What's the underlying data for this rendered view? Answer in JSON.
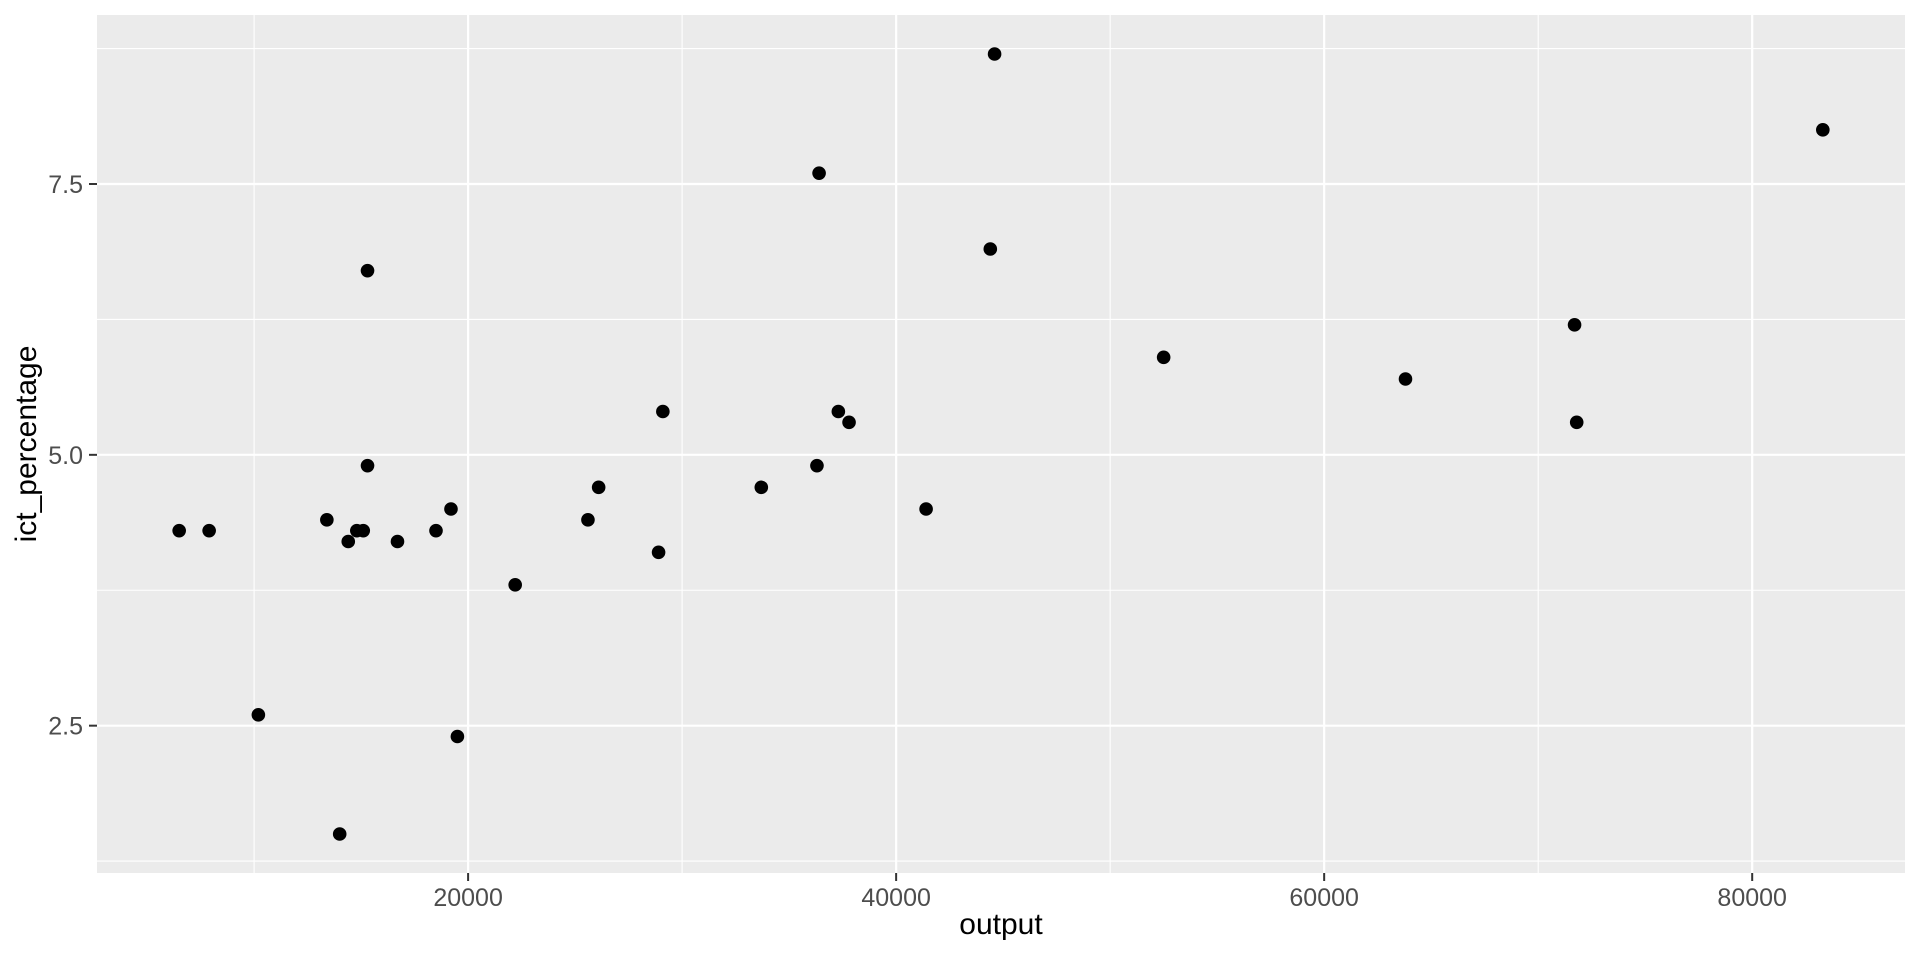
{
  "chart_data": {
    "type": "scatter",
    "title": "",
    "xlabel": "output",
    "ylabel": "ict_percentage",
    "x_ticks": [
      20000,
      40000,
      60000,
      80000
    ],
    "x_tick_labels": [
      "20000",
      "40000",
      "60000",
      "80000"
    ],
    "x_minor_ticks": [
      10000,
      30000,
      50000,
      70000
    ],
    "y_ticks": [
      2.5,
      5.0,
      7.5
    ],
    "y_tick_labels": [
      "2.5",
      "5.0",
      "7.5"
    ],
    "y_minor_ticks": [
      1.25,
      3.75,
      6.25,
      8.75
    ],
    "xlim": [
      2660,
      87140
    ],
    "ylim": [
      1.14,
      9.06
    ],
    "grid": "white major and minor gridlines on grey panel",
    "legend_position": "none",
    "points": [
      [
        6500,
        4.3
      ],
      [
        7900,
        4.3
      ],
      [
        10200,
        2.6
      ],
      [
        13400,
        4.4
      ],
      [
        14000,
        1.5
      ],
      [
        14400,
        4.2
      ],
      [
        14800,
        4.3
      ],
      [
        15100,
        4.3
      ],
      [
        15300,
        4.9
      ],
      [
        15300,
        6.7
      ],
      [
        16700,
        4.2
      ],
      [
        18500,
        4.3
      ],
      [
        19200,
        4.5
      ],
      [
        19500,
        2.4
      ],
      [
        22200,
        3.8
      ],
      [
        25600,
        4.4
      ],
      [
        26100,
        4.7
      ],
      [
        28900,
        4.1
      ],
      [
        29100,
        5.4
      ],
      [
        33700,
        4.7
      ],
      [
        36300,
        4.9
      ],
      [
        36400,
        7.6
      ],
      [
        37300,
        5.4
      ],
      [
        37800,
        5.3
      ],
      [
        41400,
        4.5
      ],
      [
        44400,
        6.9
      ],
      [
        44600,
        8.7
      ],
      [
        52500,
        5.9
      ],
      [
        63800,
        5.7
      ],
      [
        71700,
        6.2
      ],
      [
        71800,
        5.3
      ],
      [
        83300,
        8.0
      ]
    ]
  },
  "style": {
    "background": "#FFFFFF",
    "panel_bg": "#EBEBEB",
    "grid_color": "#FFFFFF",
    "point_color": "#000000",
    "tick_mark_color": "#333333",
    "tick_label_color": "#4D4D4D",
    "axis_title_color": "#000000"
  }
}
